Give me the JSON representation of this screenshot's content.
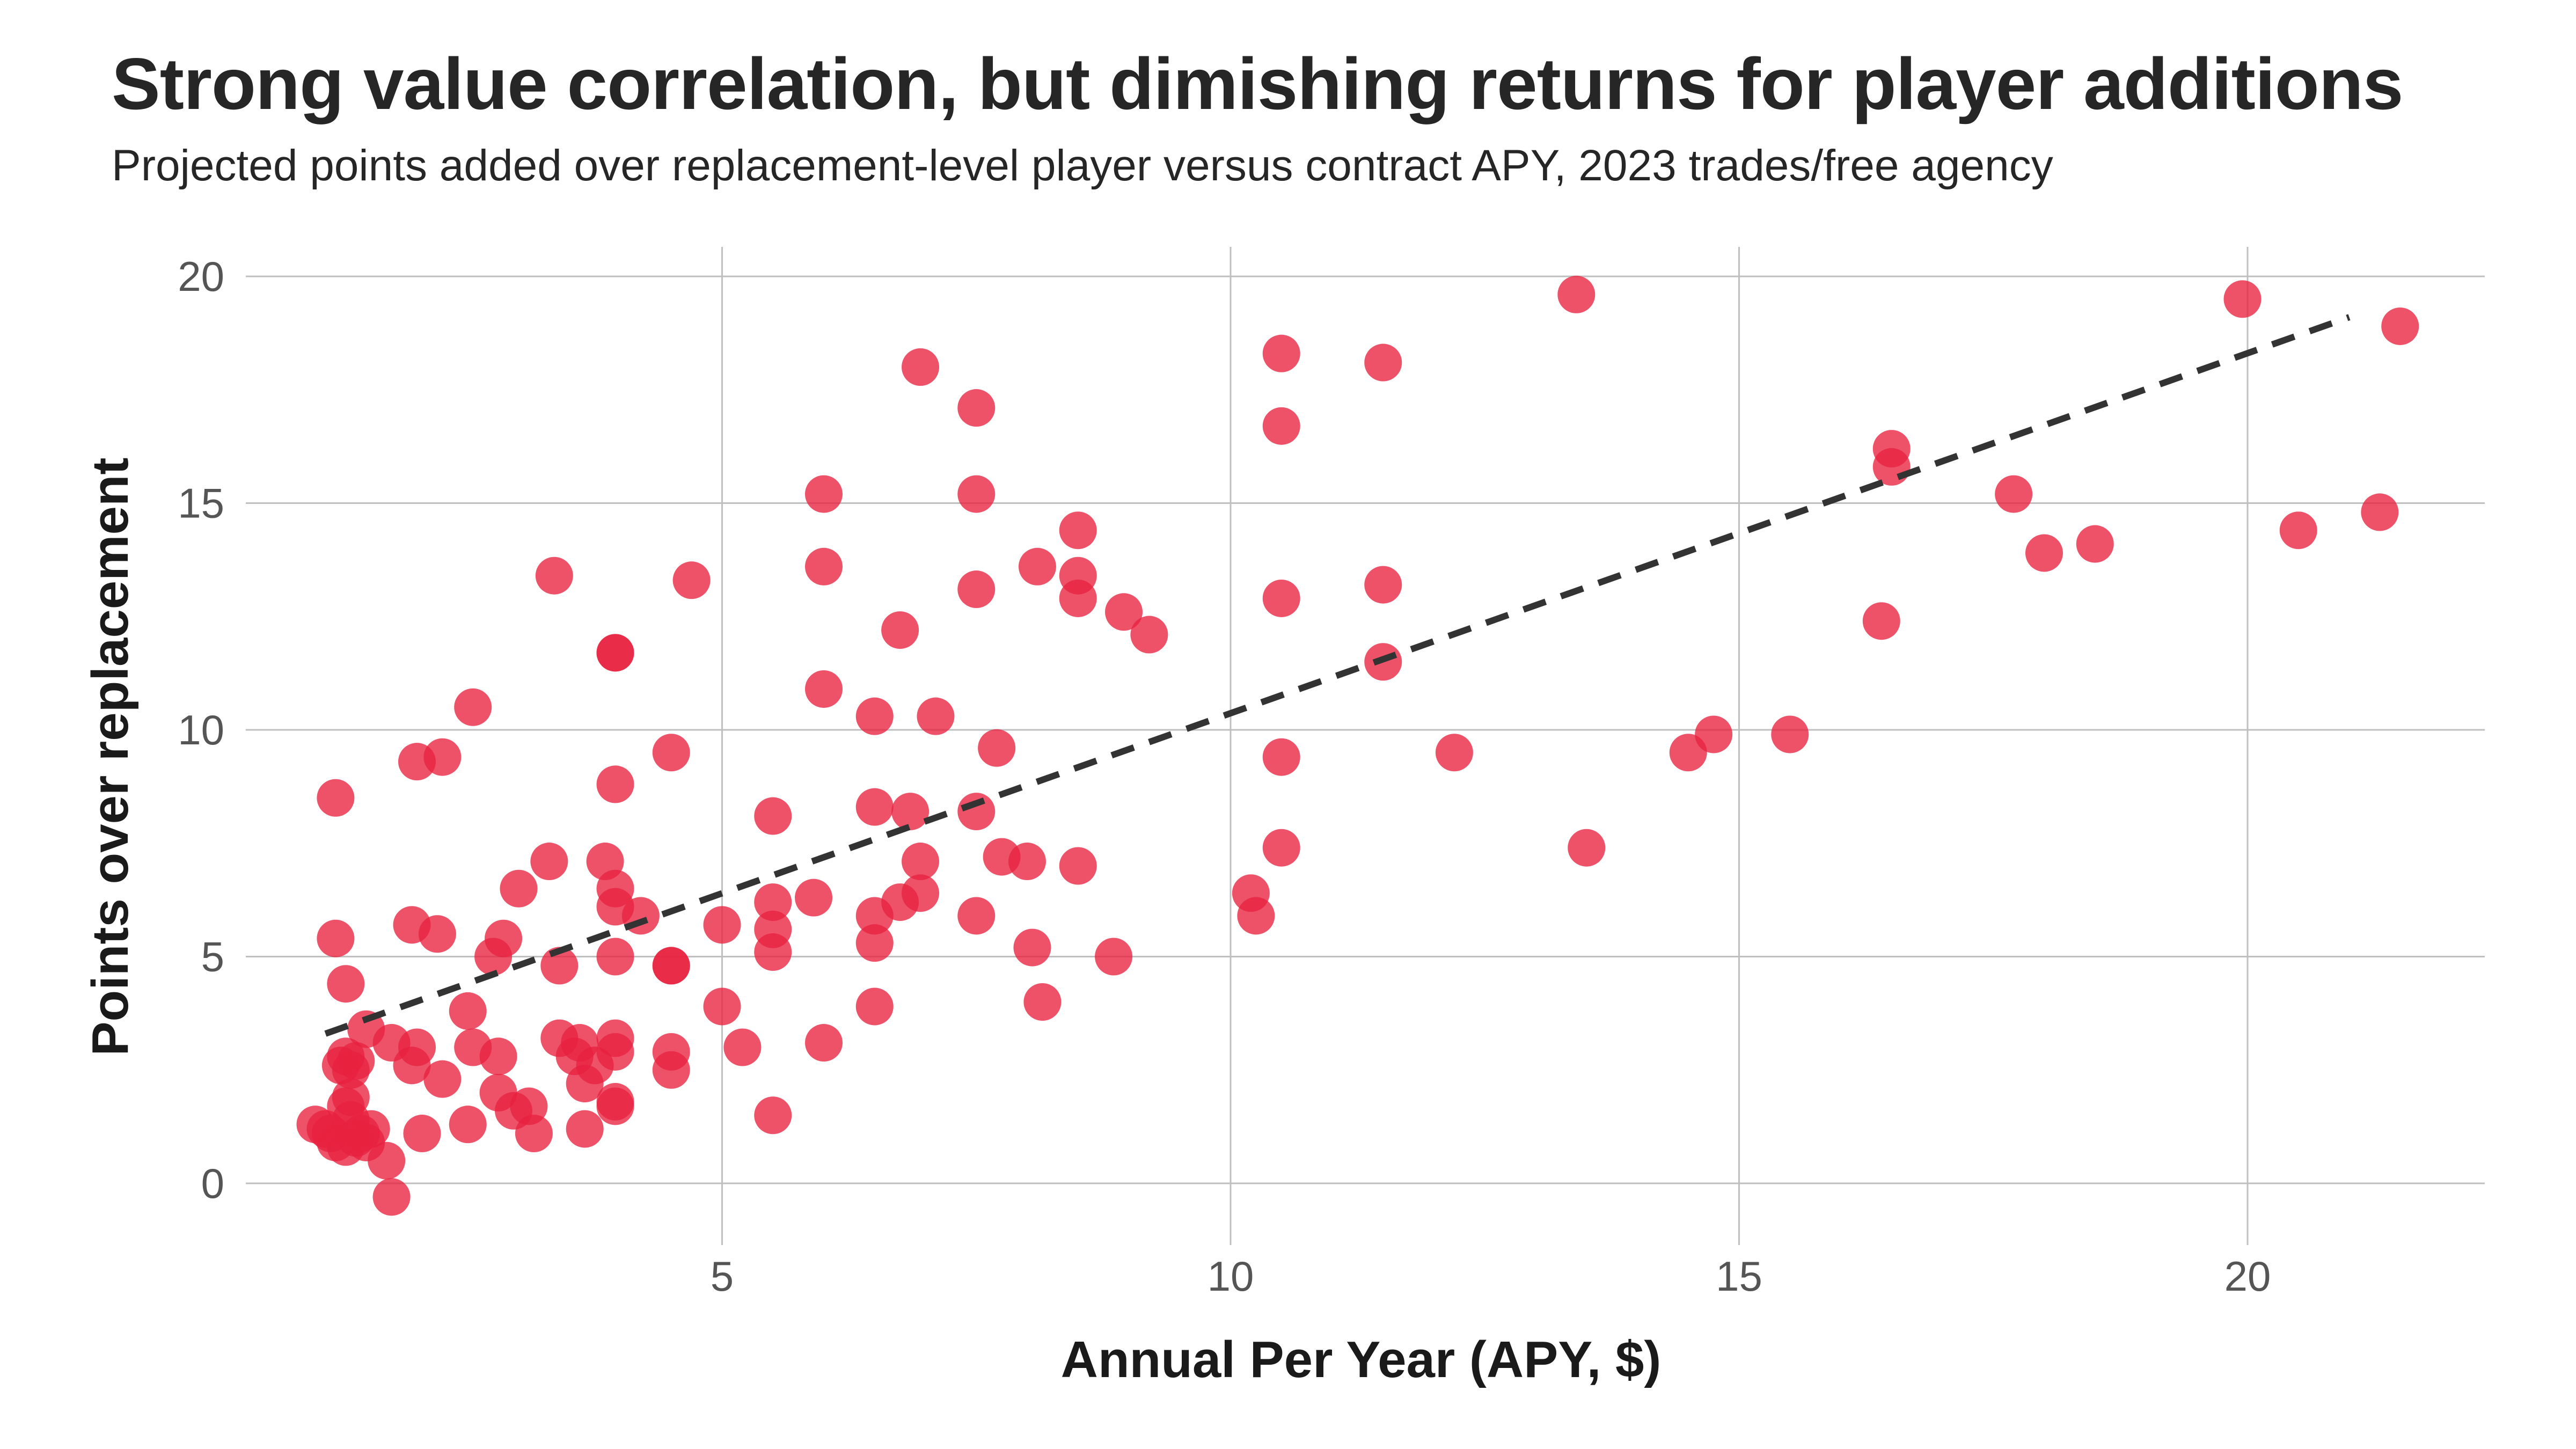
{
  "chart_data": {
    "type": "scatter",
    "title": "Strong value correlation, but dimishing returns for player additions",
    "subtitle": "Projected points added over replacement-level player versus contract APY, 2023 trades/free agency",
    "xlabel": "Annual Per Year (APY, $)",
    "ylabel": "Points over replacement",
    "xlim": [
      0,
      22
    ],
    "ylim": [
      -1,
      21
    ],
    "x_ticks": [
      5,
      10,
      15,
      20
    ],
    "y_ticks": [
      0,
      5,
      10,
      15,
      20
    ],
    "grid": true,
    "legend": "none",
    "colors": {
      "points": "#E8213F",
      "trend": "#333333",
      "grid": "#bfbfbf"
    },
    "trend_line": {
      "style": "dashed",
      "x": [
        1.1,
        21.0
      ],
      "y": [
        3.3,
        19.1
      ]
    },
    "points": [
      {
        "x": 1.0,
        "y": 1.3
      },
      {
        "x": 1.1,
        "y": 1.2
      },
      {
        "x": 1.15,
        "y": 1.1
      },
      {
        "x": 1.2,
        "y": 0.9
      },
      {
        "x": 1.3,
        "y": 0.8
      },
      {
        "x": 1.35,
        "y": 1.4
      },
      {
        "x": 1.4,
        "y": 1.0
      },
      {
        "x": 1.3,
        "y": 1.7
      },
      {
        "x": 1.35,
        "y": 1.9
      },
      {
        "x": 1.45,
        "y": 1.1
      },
      {
        "x": 1.5,
        "y": 0.9
      },
      {
        "x": 1.55,
        "y": 1.2
      },
      {
        "x": 1.25,
        "y": 2.6
      },
      {
        "x": 1.3,
        "y": 2.8
      },
      {
        "x": 1.35,
        "y": 2.5
      },
      {
        "x": 1.4,
        "y": 2.7
      },
      {
        "x": 1.5,
        "y": 3.4
      },
      {
        "x": 1.3,
        "y": 4.4
      },
      {
        "x": 1.2,
        "y": 5.4
      },
      {
        "x": 1.2,
        "y": 8.5
      },
      {
        "x": 1.7,
        "y": 0.5
      },
      {
        "x": 1.75,
        "y": -0.3
      },
      {
        "x": 1.75,
        "y": 3.1
      },
      {
        "x": 1.95,
        "y": 2.6
      },
      {
        "x": 2.0,
        "y": 3.0
      },
      {
        "x": 2.05,
        "y": 1.1
      },
      {
        "x": 2.25,
        "y": 2.3
      },
      {
        "x": 1.95,
        "y": 5.7
      },
      {
        "x": 2.2,
        "y": 5.5
      },
      {
        "x": 2.0,
        "y": 9.3
      },
      {
        "x": 2.25,
        "y": 9.4
      },
      {
        "x": 2.5,
        "y": 3.8
      },
      {
        "x": 2.55,
        "y": 3.0
      },
      {
        "x": 2.5,
        "y": 1.3
      },
      {
        "x": 2.55,
        "y": 10.5
      },
      {
        "x": 2.8,
        "y": 2.8
      },
      {
        "x": 2.75,
        "y": 5.0
      },
      {
        "x": 2.85,
        "y": 5.4
      },
      {
        "x": 2.95,
        "y": 1.6
      },
      {
        "x": 2.8,
        "y": 2.0
      },
      {
        "x": 3.0,
        "y": 6.5
      },
      {
        "x": 3.1,
        "y": 1.7
      },
      {
        "x": 3.15,
        "y": 1.1
      },
      {
        "x": 3.3,
        "y": 7.1
      },
      {
        "x": 3.4,
        "y": 4.8
      },
      {
        "x": 3.4,
        "y": 3.2
      },
      {
        "x": 3.35,
        "y": 13.4
      },
      {
        "x": 3.55,
        "y": 2.8
      },
      {
        "x": 3.6,
        "y": 3.1
      },
      {
        "x": 3.65,
        "y": 2.2
      },
      {
        "x": 3.65,
        "y": 1.2
      },
      {
        "x": 3.75,
        "y": 2.6
      },
      {
        "x": 3.85,
        "y": 7.1
      },
      {
        "x": 3.95,
        "y": 6.5
      },
      {
        "x": 3.95,
        "y": 6.1
      },
      {
        "x": 3.95,
        "y": 5.0
      },
      {
        "x": 3.95,
        "y": 3.2
      },
      {
        "x": 3.95,
        "y": 2.9
      },
      {
        "x": 3.95,
        "y": 1.8
      },
      {
        "x": 3.95,
        "y": 1.7
      },
      {
        "x": 3.95,
        "y": 8.8
      },
      {
        "x": 3.95,
        "y": 11.7
      },
      {
        "x": 3.95,
        "y": 11.7
      },
      {
        "x": 4.2,
        "y": 5.9
      },
      {
        "x": 4.5,
        "y": 4.8
      },
      {
        "x": 4.5,
        "y": 4.8
      },
      {
        "x": 4.5,
        "y": 2.9
      },
      {
        "x": 4.5,
        "y": 2.5
      },
      {
        "x": 4.5,
        "y": 9.5
      },
      {
        "x": 4.7,
        "y": 13.3
      },
      {
        "x": 5.0,
        "y": 3.9
      },
      {
        "x": 5.0,
        "y": 5.7
      },
      {
        "x": 5.2,
        "y": 3.0
      },
      {
        "x": 5.5,
        "y": 1.5
      },
      {
        "x": 5.5,
        "y": 5.1
      },
      {
        "x": 5.5,
        "y": 5.6
      },
      {
        "x": 5.5,
        "y": 6.2
      },
      {
        "x": 5.5,
        "y": 8.1
      },
      {
        "x": 5.9,
        "y": 6.3
      },
      {
        "x": 6.0,
        "y": 3.1
      },
      {
        "x": 6.0,
        "y": 10.9
      },
      {
        "x": 6.0,
        "y": 13.6
      },
      {
        "x": 6.0,
        "y": 15.2
      },
      {
        "x": 6.5,
        "y": 3.9
      },
      {
        "x": 6.5,
        "y": 5.3
      },
      {
        "x": 6.5,
        "y": 5.9
      },
      {
        "x": 6.5,
        "y": 8.3
      },
      {
        "x": 6.5,
        "y": 10.3
      },
      {
        "x": 6.75,
        "y": 6.2
      },
      {
        "x": 6.75,
        "y": 12.2
      },
      {
        "x": 6.85,
        "y": 8.2
      },
      {
        "x": 6.95,
        "y": 7.1
      },
      {
        "x": 6.95,
        "y": 6.4
      },
      {
        "x": 6.95,
        "y": 18.0
      },
      {
        "x": 7.1,
        "y": 10.3
      },
      {
        "x": 7.5,
        "y": 5.9
      },
      {
        "x": 7.5,
        "y": 8.2
      },
      {
        "x": 7.5,
        "y": 13.1
      },
      {
        "x": 7.5,
        "y": 15.2
      },
      {
        "x": 7.5,
        "y": 17.1
      },
      {
        "x": 7.7,
        "y": 9.6
      },
      {
        "x": 7.75,
        "y": 7.2
      },
      {
        "x": 8.0,
        "y": 7.1
      },
      {
        "x": 8.05,
        "y": 5.2
      },
      {
        "x": 8.1,
        "y": 13.6
      },
      {
        "x": 8.15,
        "y": 4.0
      },
      {
        "x": 8.5,
        "y": 7.0
      },
      {
        "x": 8.5,
        "y": 12.9
      },
      {
        "x": 8.5,
        "y": 13.4
      },
      {
        "x": 8.5,
        "y": 14.4
      },
      {
        "x": 8.85,
        "y": 5.0
      },
      {
        "x": 8.95,
        "y": 12.6
      },
      {
        "x": 9.2,
        "y": 12.1
      },
      {
        "x": 10.2,
        "y": 6.4
      },
      {
        "x": 10.25,
        "y": 5.9
      },
      {
        "x": 10.5,
        "y": 7.4
      },
      {
        "x": 10.5,
        "y": 9.4
      },
      {
        "x": 10.5,
        "y": 12.9
      },
      {
        "x": 10.5,
        "y": 16.7
      },
      {
        "x": 10.5,
        "y": 18.3
      },
      {
        "x": 11.5,
        "y": 11.5
      },
      {
        "x": 11.5,
        "y": 13.2
      },
      {
        "x": 11.5,
        "y": 18.1
      },
      {
        "x": 12.2,
        "y": 9.5
      },
      {
        "x": 13.4,
        "y": 19.6
      },
      {
        "x": 13.5,
        "y": 7.4
      },
      {
        "x": 14.5,
        "y": 9.5
      },
      {
        "x": 14.75,
        "y": 9.9
      },
      {
        "x": 15.5,
        "y": 9.9
      },
      {
        "x": 16.4,
        "y": 12.4
      },
      {
        "x": 16.5,
        "y": 15.8
      },
      {
        "x": 16.5,
        "y": 16.2
      },
      {
        "x": 17.7,
        "y": 15.2
      },
      {
        "x": 18.0,
        "y": 13.9
      },
      {
        "x": 18.5,
        "y": 14.1
      },
      {
        "x": 19.95,
        "y": 19.5
      },
      {
        "x": 20.5,
        "y": 14.4
      },
      {
        "x": 21.3,
        "y": 14.8
      },
      {
        "x": 21.5,
        "y": 18.9
      }
    ]
  }
}
